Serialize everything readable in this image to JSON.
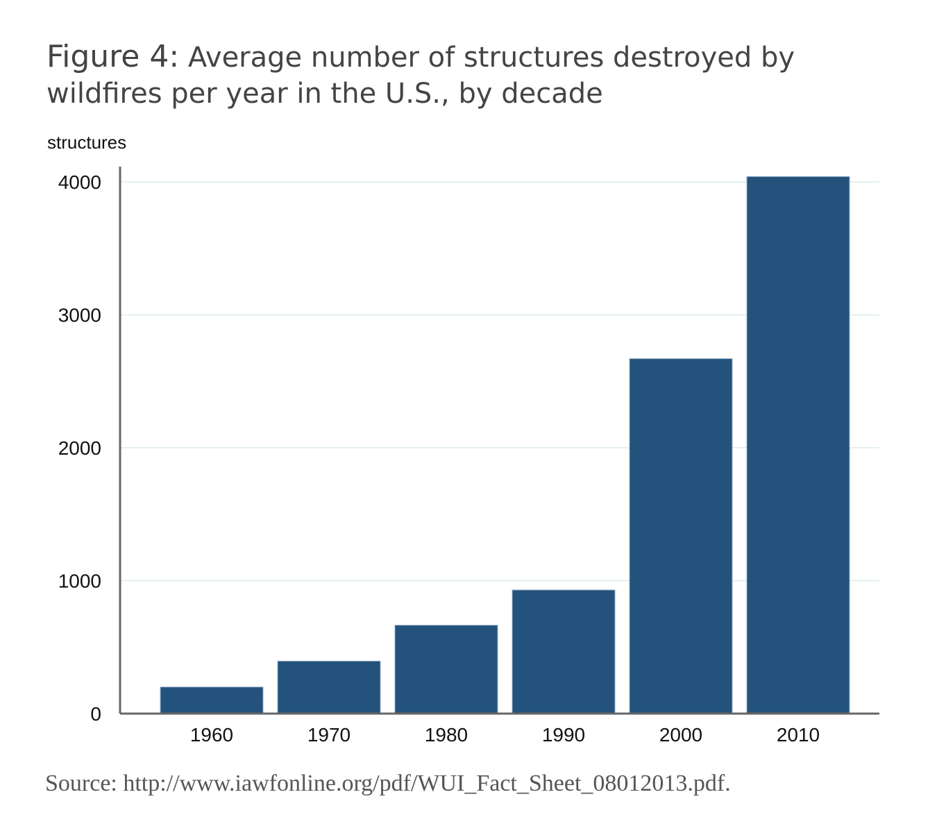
{
  "title_prefix": "Figure 4:",
  "title_text": "Average number of structures destroyed by wildfires per year in the U.S., by decade",
  "source_text": "Source: http://www.iawfonline.org/pdf/WUI_Fact_Sheet_08012013.pdf.",
  "colors": {
    "bar": "#23527c",
    "axis": "#666666",
    "grid": "#e4f1ef"
  },
  "chart_data": {
    "type": "bar",
    "categories": [
      "1960",
      "1970",
      "1980",
      "1990",
      "2000",
      "2010"
    ],
    "values": [
      200,
      395,
      665,
      930,
      2670,
      4040
    ],
    "title": "Figure 4: Average number of structures destroyed by wildfires per year in the U.S., by decade",
    "xlabel": "",
    "ylabel": "structures",
    "ylim": [
      0,
      4100
    ],
    "yticks": [
      0,
      1000,
      2000,
      3000,
      4000
    ],
    "grid": true,
    "legend": "none"
  }
}
